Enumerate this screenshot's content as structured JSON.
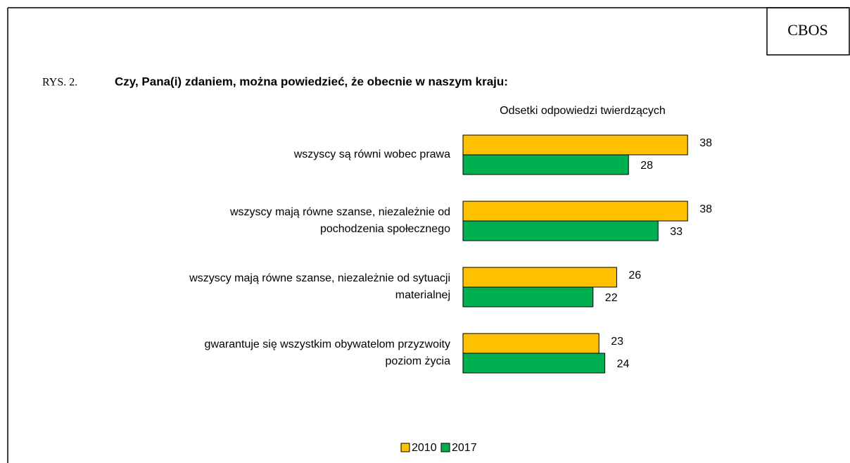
{
  "chart_data": {
    "type": "bar",
    "orientation": "horizontal",
    "badge": "CBOS",
    "figure_label": "RYS. 2.",
    "title": "Czy, Pana(i) zdaniem, można powiedzieć, że obecnie w naszym kraju:",
    "subtitle": "Odsetki odpowiedzi twierdzących",
    "categories": [
      "wszyscy są równi wobec prawa",
      "wszyscy mają równe szanse, niezależnie od\npochodzenia społecznego",
      "wszyscy mają równe szanse, niezależnie od sytuacji\nmaterialnej",
      "gwarantuje się wszystkim obywatelom przyzwoity\npoziom życia"
    ],
    "series": [
      {
        "name": "2010",
        "color": "#FFC000",
        "values": [
          38,
          38,
          26,
          23
        ]
      },
      {
        "name": "2017",
        "color": "#00B050",
        "values": [
          28,
          33,
          22,
          24
        ]
      }
    ],
    "xlim": [
      0,
      40
    ],
    "legend": "bottom"
  }
}
